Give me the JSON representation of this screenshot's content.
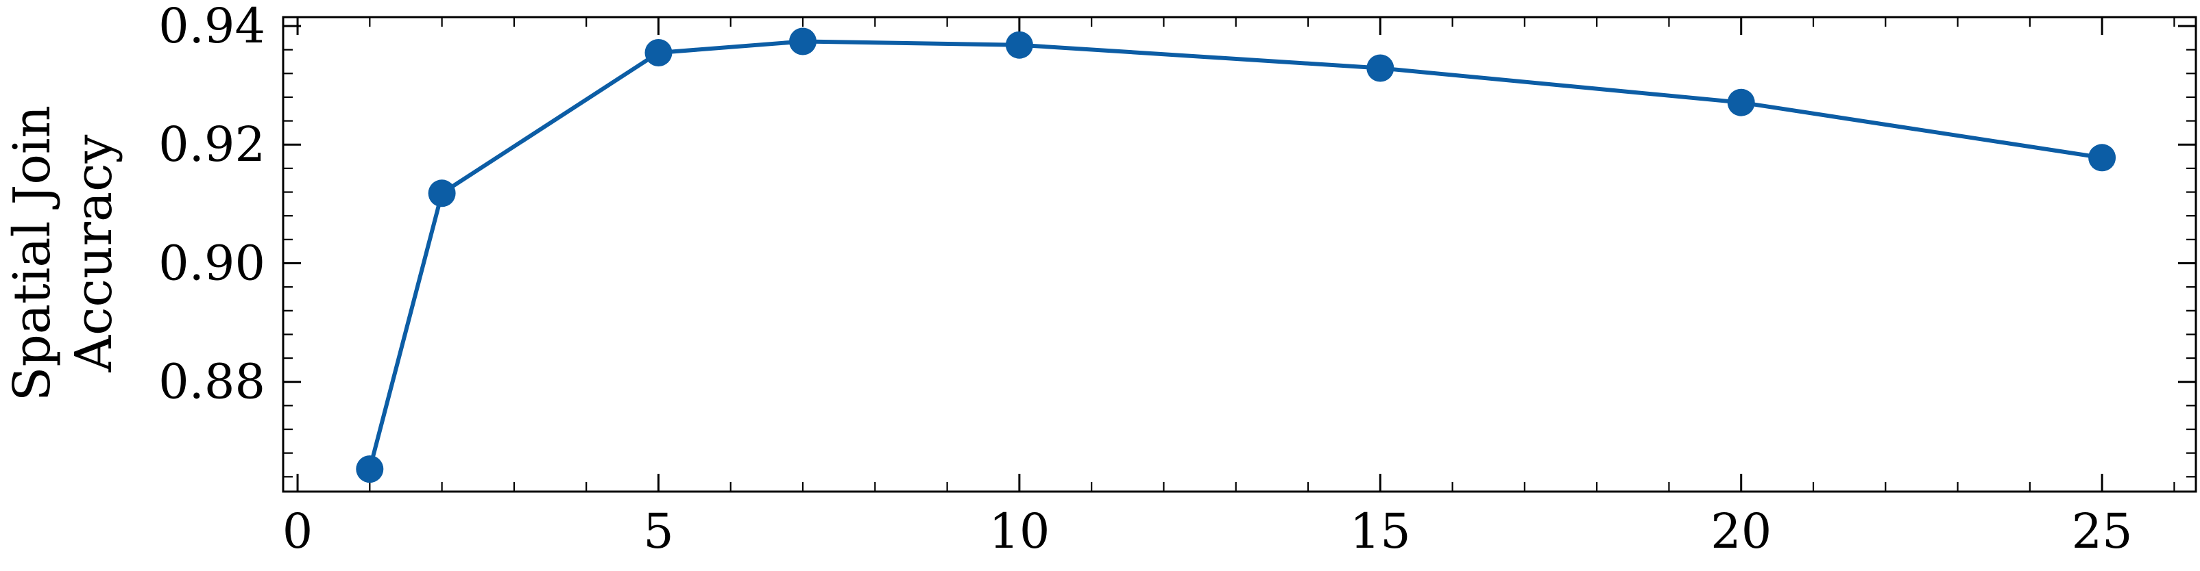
{
  "colors": {
    "series": "#0C5DA5",
    "axis": "#000000",
    "background": "#ffffff"
  },
  "chart_data": {
    "type": "line",
    "title": "",
    "xlabel": "",
    "ylabel": "Spatial Join Accuracy",
    "ylabel_lines": [
      "Spatial Join",
      "Accuracy"
    ],
    "xlim": [
      -0.2,
      26.3
    ],
    "ylim": [
      0.8615,
      0.9415
    ],
    "x_ticks": [
      0,
      5,
      10,
      15,
      20,
      25
    ],
    "x_tick_labels": [
      "0",
      "5",
      "10",
      "15",
      "20",
      "25"
    ],
    "y_ticks": [
      0.88,
      0.9,
      0.92,
      0.94
    ],
    "y_tick_labels": [
      "0.88",
      "0.90",
      "0.92",
      "0.94"
    ],
    "x_minor_step": 1,
    "y_minor_step": 0.004,
    "grid": false,
    "legend": "none",
    "marker": "circle",
    "series": [
      {
        "x": [
          1,
          2,
          5,
          7,
          10,
          15,
          20,
          25
        ],
        "values": [
          0.8653,
          0.9118,
          0.9355,
          0.9374,
          0.9368,
          0.9329,
          0.9271,
          0.9178
        ]
      }
    ]
  }
}
